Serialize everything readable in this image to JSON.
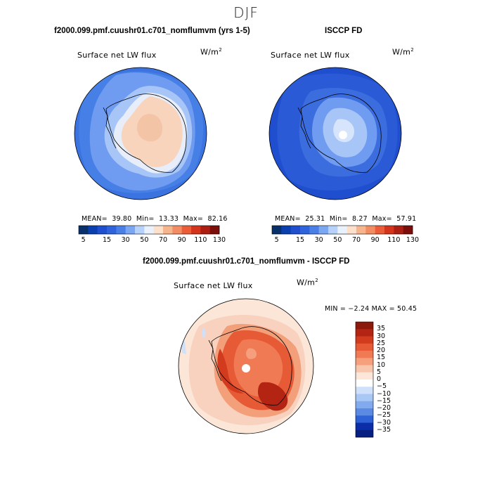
{
  "season": "DJF",
  "panels": [
    {
      "id": "model",
      "title": "f2000.099.pmf.cuushr01.c701_nomflumvm (yrs 1-5)",
      "variable": "Surface net LW flux",
      "units": "W/m",
      "units_sup": "2",
      "stats": {
        "mean_label": "MEAN=",
        "mean": "39.80",
        "min_label": "Min=",
        "min": "13.33",
        "max_label": "Max=",
        "max": "82.16"
      }
    },
    {
      "id": "obs",
      "title": "ISCCP FD",
      "variable": "Surface net LW flux",
      "units": "W/m",
      "units_sup": "2",
      "stats": {
        "mean_label": "MEAN=",
        "mean": "25.31",
        "min_label": "Min=",
        "min": "8.27",
        "max_label": "Max=",
        "max": "57.91"
      }
    }
  ],
  "colorbar_main": {
    "ticks": [
      "5",
      "15",
      "30",
      "50",
      "70",
      "90",
      "110",
      "130"
    ],
    "colors": [
      "#08306b",
      "#0a3fb0",
      "#1f4fcf",
      "#2f63db",
      "#4a7fe8",
      "#7aa6f2",
      "#b6d2fa",
      "#e9f1fd",
      "#fde0cc",
      "#f7b58e",
      "#f28c63",
      "#ea5d38",
      "#d4341b",
      "#ad1e12",
      "#7b0d0a"
    ]
  },
  "diff_panel": {
    "title": "f2000.099.pmf.cuushr01.c701_nomflumvm - ISCCP FD",
    "variable": "Surface net LW flux",
    "units": "W/m",
    "units_sup": "2",
    "min_max_text": "MIN =   −2.24  MAX =  50.45"
  },
  "colorbar_diff": {
    "labels": [
      "35",
      "30",
      "25",
      "20",
      "15",
      "10",
      "5",
      "0",
      "−5",
      "−10",
      "−15",
      "−20",
      "−25",
      "−30",
      "−35"
    ],
    "colors": [
      "#8c1a0c",
      "#b32512",
      "#d23b1d",
      "#e65a36",
      "#f07a54",
      "#f59f7d",
      "#f8c6ac",
      "#fbe6d8",
      "#ffffff",
      "#cfe0fa",
      "#a9c7f5",
      "#82aaee",
      "#5a8ae4",
      "#2f62d6",
      "#0b2ea8",
      "#071f80"
    ]
  }
}
